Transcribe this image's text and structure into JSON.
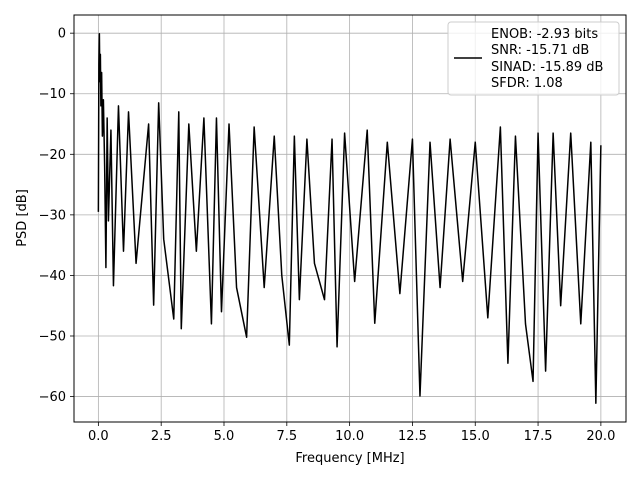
{
  "chart_data": {
    "type": "line",
    "title": "",
    "xlabel": "Frequency [MHz]",
    "ylabel": "PSD [dB]",
    "xlim": [
      -0.97,
      21.0
    ],
    "ylim": [
      -64.2,
      3.0
    ],
    "xticks": [
      0.0,
      2.5,
      5.0,
      7.5,
      10.0,
      12.5,
      15.0,
      17.5,
      20.0
    ],
    "xtick_labels": [
      "0.0",
      "2.5",
      "5.0",
      "7.5",
      "10.0",
      "12.5",
      "15.0",
      "17.5",
      "20.0"
    ],
    "yticks": [
      0,
      -10,
      -20,
      -30,
      -40,
      -50,
      -60
    ],
    "ytick_labels": [
      "0",
      "−10",
      "−20",
      "−30",
      "−40",
      "−50",
      "−60"
    ],
    "grid": true,
    "legend_position": "top-right",
    "legend_lines": [
      "ENOB: -2.93 bits",
      "SNR: -15.71 dB",
      "SINAD: -15.89 dB",
      "SFDR: 1.08"
    ],
    "series": [
      {
        "color": "#000000",
        "points": [
          [
            0.0,
            -29.5
          ],
          [
            0.02,
            -5.2
          ],
          [
            0.04,
            -0.1
          ],
          [
            0.06,
            -8.0
          ],
          [
            0.08,
            -3.5
          ],
          [
            0.1,
            -12.0
          ],
          [
            0.13,
            -6.5
          ],
          [
            0.16,
            -17.0
          ],
          [
            0.2,
            -11.0
          ],
          [
            0.25,
            -22.0
          ],
          [
            0.3,
            -38.7
          ],
          [
            0.35,
            -14.0
          ],
          [
            0.4,
            -31.0
          ],
          [
            0.5,
            -16.0
          ],
          [
            0.6,
            -41.7
          ],
          [
            0.8,
            -12.0
          ],
          [
            1.0,
            -36.0
          ],
          [
            1.2,
            -13.0
          ],
          [
            1.5,
            -38.0
          ],
          [
            2.0,
            -15.0
          ],
          [
            2.2,
            -44.9
          ],
          [
            2.4,
            -11.5
          ],
          [
            2.6,
            -34.0
          ],
          [
            3.0,
            -47.2
          ],
          [
            3.2,
            -13.0
          ],
          [
            3.3,
            -48.8
          ],
          [
            3.6,
            -15.0
          ],
          [
            3.9,
            -36.0
          ],
          [
            4.2,
            -14.0
          ],
          [
            4.5,
            -48.0
          ],
          [
            4.7,
            -14.0
          ],
          [
            4.9,
            -46.0
          ],
          [
            5.2,
            -15.0
          ],
          [
            5.5,
            -42.0
          ],
          [
            5.9,
            -50.2
          ],
          [
            6.2,
            -15.5
          ],
          [
            6.6,
            -42.0
          ],
          [
            7.0,
            -17.0
          ],
          [
            7.3,
            -40.0
          ],
          [
            7.6,
            -51.5
          ],
          [
            7.8,
            -17.0
          ],
          [
            8.0,
            -44.0
          ],
          [
            8.3,
            -17.5
          ],
          [
            8.6,
            -38.0
          ],
          [
            9.0,
            -44.0
          ],
          [
            9.3,
            -17.5
          ],
          [
            9.5,
            -51.8
          ],
          [
            9.8,
            -16.5
          ],
          [
            10.2,
            -41.0
          ],
          [
            10.7,
            -16.0
          ],
          [
            11.0,
            -47.9
          ],
          [
            11.5,
            -18.0
          ],
          [
            12.0,
            -43.0
          ],
          [
            12.5,
            -17.5
          ],
          [
            12.8,
            -59.9
          ],
          [
            13.2,
            -18.0
          ],
          [
            13.6,
            -42.0
          ],
          [
            14.0,
            -17.5
          ],
          [
            14.5,
            -41.0
          ],
          [
            15.0,
            -18.0
          ],
          [
            15.5,
            -47.0
          ],
          [
            16.0,
            -15.5
          ],
          [
            16.3,
            -54.5
          ],
          [
            16.6,
            -17.0
          ],
          [
            17.0,
            -48.0
          ],
          [
            17.3,
            -57.5
          ],
          [
            17.5,
            -16.5
          ],
          [
            17.8,
            -55.8
          ],
          [
            18.1,
            -16.5
          ],
          [
            18.4,
            -45.0
          ],
          [
            18.8,
            -16.5
          ],
          [
            19.2,
            -48.0
          ],
          [
            19.6,
            -18.0
          ],
          [
            19.8,
            -61.1
          ],
          [
            20.0,
            -18.5
          ]
        ]
      }
    ]
  }
}
